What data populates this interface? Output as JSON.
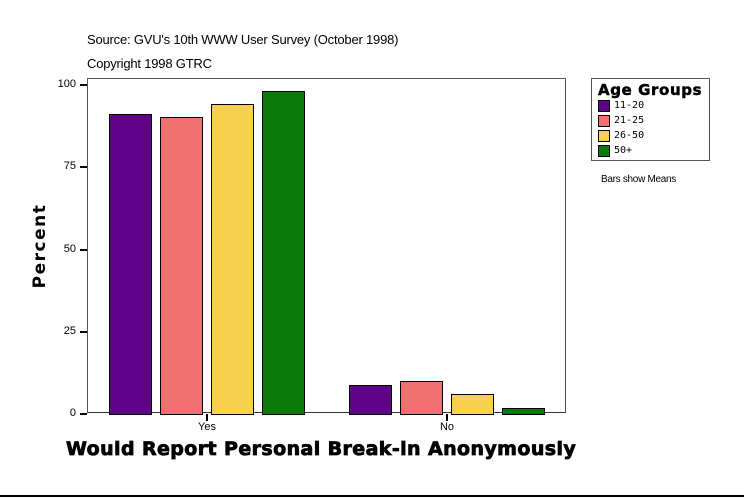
{
  "header": {
    "source": "Source: GVU's 10th WWW User Survey (October 1998)",
    "copyright": "Copyright 1998 GTRC"
  },
  "legend": {
    "title": "Age Groups",
    "items": [
      {
        "label": "11-20",
        "color": "#5f0388"
      },
      {
        "label": "21-25",
        "color": "#f07070"
      },
      {
        "label": "26-50",
        "color": "#f8d050"
      },
      {
        "label": "50+",
        "color": "#0b7a0b"
      }
    ]
  },
  "note": "Bars show Means",
  "axes": {
    "ylabel": "Percent",
    "xlabel": "Would Report Personal Break-in Anonymously",
    "yticks": [
      "0",
      "25",
      "50",
      "75",
      "100"
    ],
    "xticks": [
      "Yes",
      "No"
    ]
  },
  "chart_data": {
    "type": "bar",
    "title": "",
    "subtitle": "Source: GVU's 10th WWW User Survey (October 1998) / Copyright 1998 GTRC",
    "xlabel": "Would Report Personal Break-in Anonymously",
    "ylabel": "Percent",
    "ylim": [
      0,
      100
    ],
    "yticks": [
      0,
      25,
      50,
      75,
      100
    ],
    "categories": [
      "Yes",
      "No"
    ],
    "series": [
      {
        "name": "11-20",
        "color": "#5f0388",
        "values": [
          91.2,
          8.8
        ]
      },
      {
        "name": "21-25",
        "color": "#f07070",
        "values": [
          90.3,
          9.9
        ]
      },
      {
        "name": "26-50",
        "color": "#f8d050",
        "values": [
          94.2,
          6.1
        ]
      },
      {
        "name": "50+",
        "color": "#0b7a0b",
        "values": [
          98.2,
          1.7
        ]
      }
    ],
    "legend_title": "Age Groups",
    "legend_position": "right",
    "annotations": [
      "Bars show Means"
    ],
    "grid": false
  }
}
